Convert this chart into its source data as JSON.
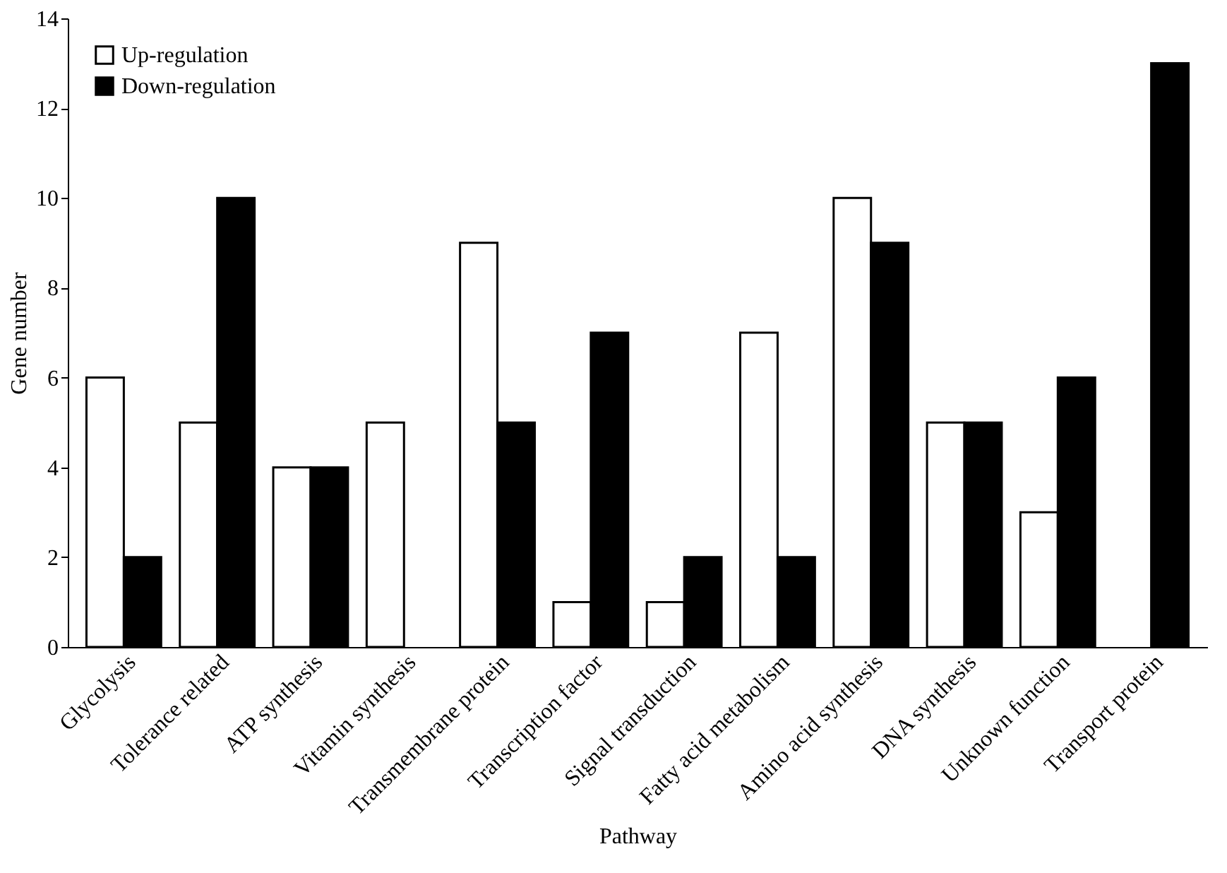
{
  "chart_data": {
    "type": "bar",
    "xlabel": "Pathway",
    "ylabel": "Gene number",
    "categories": [
      "Glycolysis",
      "Tolerance related",
      "ATP synthesis",
      "Vitamin synthesis",
      "Transmembrane protein",
      "Transcription factor",
      "Signal transduction",
      "Fatty acid metabolism",
      "Amino acid synthesis",
      "DNA synthesis",
      "Unknown function",
      "Transport protein"
    ],
    "series": [
      {
        "name": "Up-regulation",
        "color": "#ffffff",
        "values": [
          6,
          5,
          4,
          5,
          9,
          1,
          1,
          7,
          10,
          5,
          3,
          null
        ]
      },
      {
        "name": "Down-regulation",
        "color": "#000000",
        "values": [
          2,
          10,
          4,
          null,
          5,
          7,
          2,
          2,
          9,
          5,
          6,
          13
        ]
      }
    ],
    "ylim": [
      0,
      14
    ],
    "yticks": [
      0,
      2,
      4,
      6,
      8,
      10,
      12,
      14
    ],
    "grid": false,
    "legend": "top left"
  }
}
